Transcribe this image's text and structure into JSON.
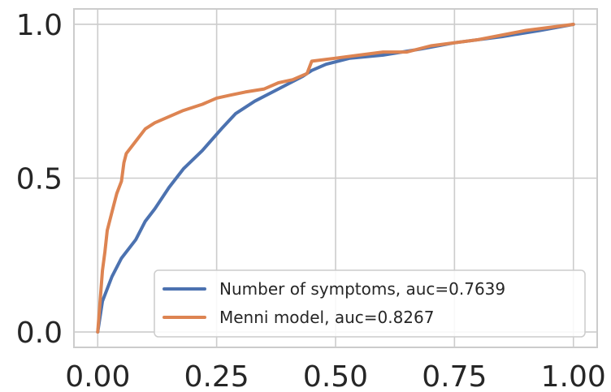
{
  "chart_data": {
    "type": "line",
    "title": "",
    "xlabel": "",
    "ylabel": "",
    "xlim": [
      -0.05,
      1.05
    ],
    "ylim": [
      -0.05,
      1.05
    ],
    "x_ticks": [
      0.0,
      0.25,
      0.5,
      0.75,
      1.0
    ],
    "x_tick_labels": [
      "0.00",
      "0.25",
      "0.50",
      "0.75",
      "1.00"
    ],
    "y_ticks": [
      0.0,
      0.5,
      1.0
    ],
    "y_tick_labels": [
      "0.0",
      "0.5",
      "1.0"
    ],
    "grid": true,
    "legend_position": "lower-right",
    "series": [
      {
        "name": "Number of symptoms, auc=0.7639",
        "color": "#4c72b0",
        "x": [
          0.0,
          0.01,
          0.03,
          0.05,
          0.08,
          0.1,
          0.12,
          0.15,
          0.18,
          0.22,
          0.26,
          0.29,
          0.33,
          0.38,
          0.43,
          0.45,
          0.48,
          0.53,
          0.6,
          0.68,
          0.75,
          0.85,
          0.93,
          1.0
        ],
        "y": [
          0.0,
          0.1,
          0.18,
          0.24,
          0.3,
          0.36,
          0.4,
          0.47,
          0.53,
          0.59,
          0.66,
          0.71,
          0.75,
          0.79,
          0.83,
          0.85,
          0.87,
          0.89,
          0.9,
          0.92,
          0.94,
          0.96,
          0.98,
          1.0
        ]
      },
      {
        "name": "Menni model, auc=0.8267",
        "color": "#dd8452",
        "x": [
          0.0,
          0.01,
          0.015,
          0.02,
          0.03,
          0.04,
          0.05,
          0.055,
          0.06,
          0.08,
          0.1,
          0.12,
          0.15,
          0.18,
          0.22,
          0.25,
          0.28,
          0.31,
          0.35,
          0.38,
          0.41,
          0.44,
          0.45,
          0.5,
          0.55,
          0.6,
          0.65,
          0.7,
          0.8,
          0.9,
          1.0
        ],
        "y": [
          0.0,
          0.2,
          0.26,
          0.33,
          0.39,
          0.45,
          0.49,
          0.55,
          0.58,
          0.62,
          0.66,
          0.68,
          0.7,
          0.72,
          0.74,
          0.76,
          0.77,
          0.78,
          0.79,
          0.81,
          0.82,
          0.84,
          0.88,
          0.89,
          0.9,
          0.91,
          0.91,
          0.93,
          0.95,
          0.98,
          1.0
        ]
      }
    ]
  }
}
